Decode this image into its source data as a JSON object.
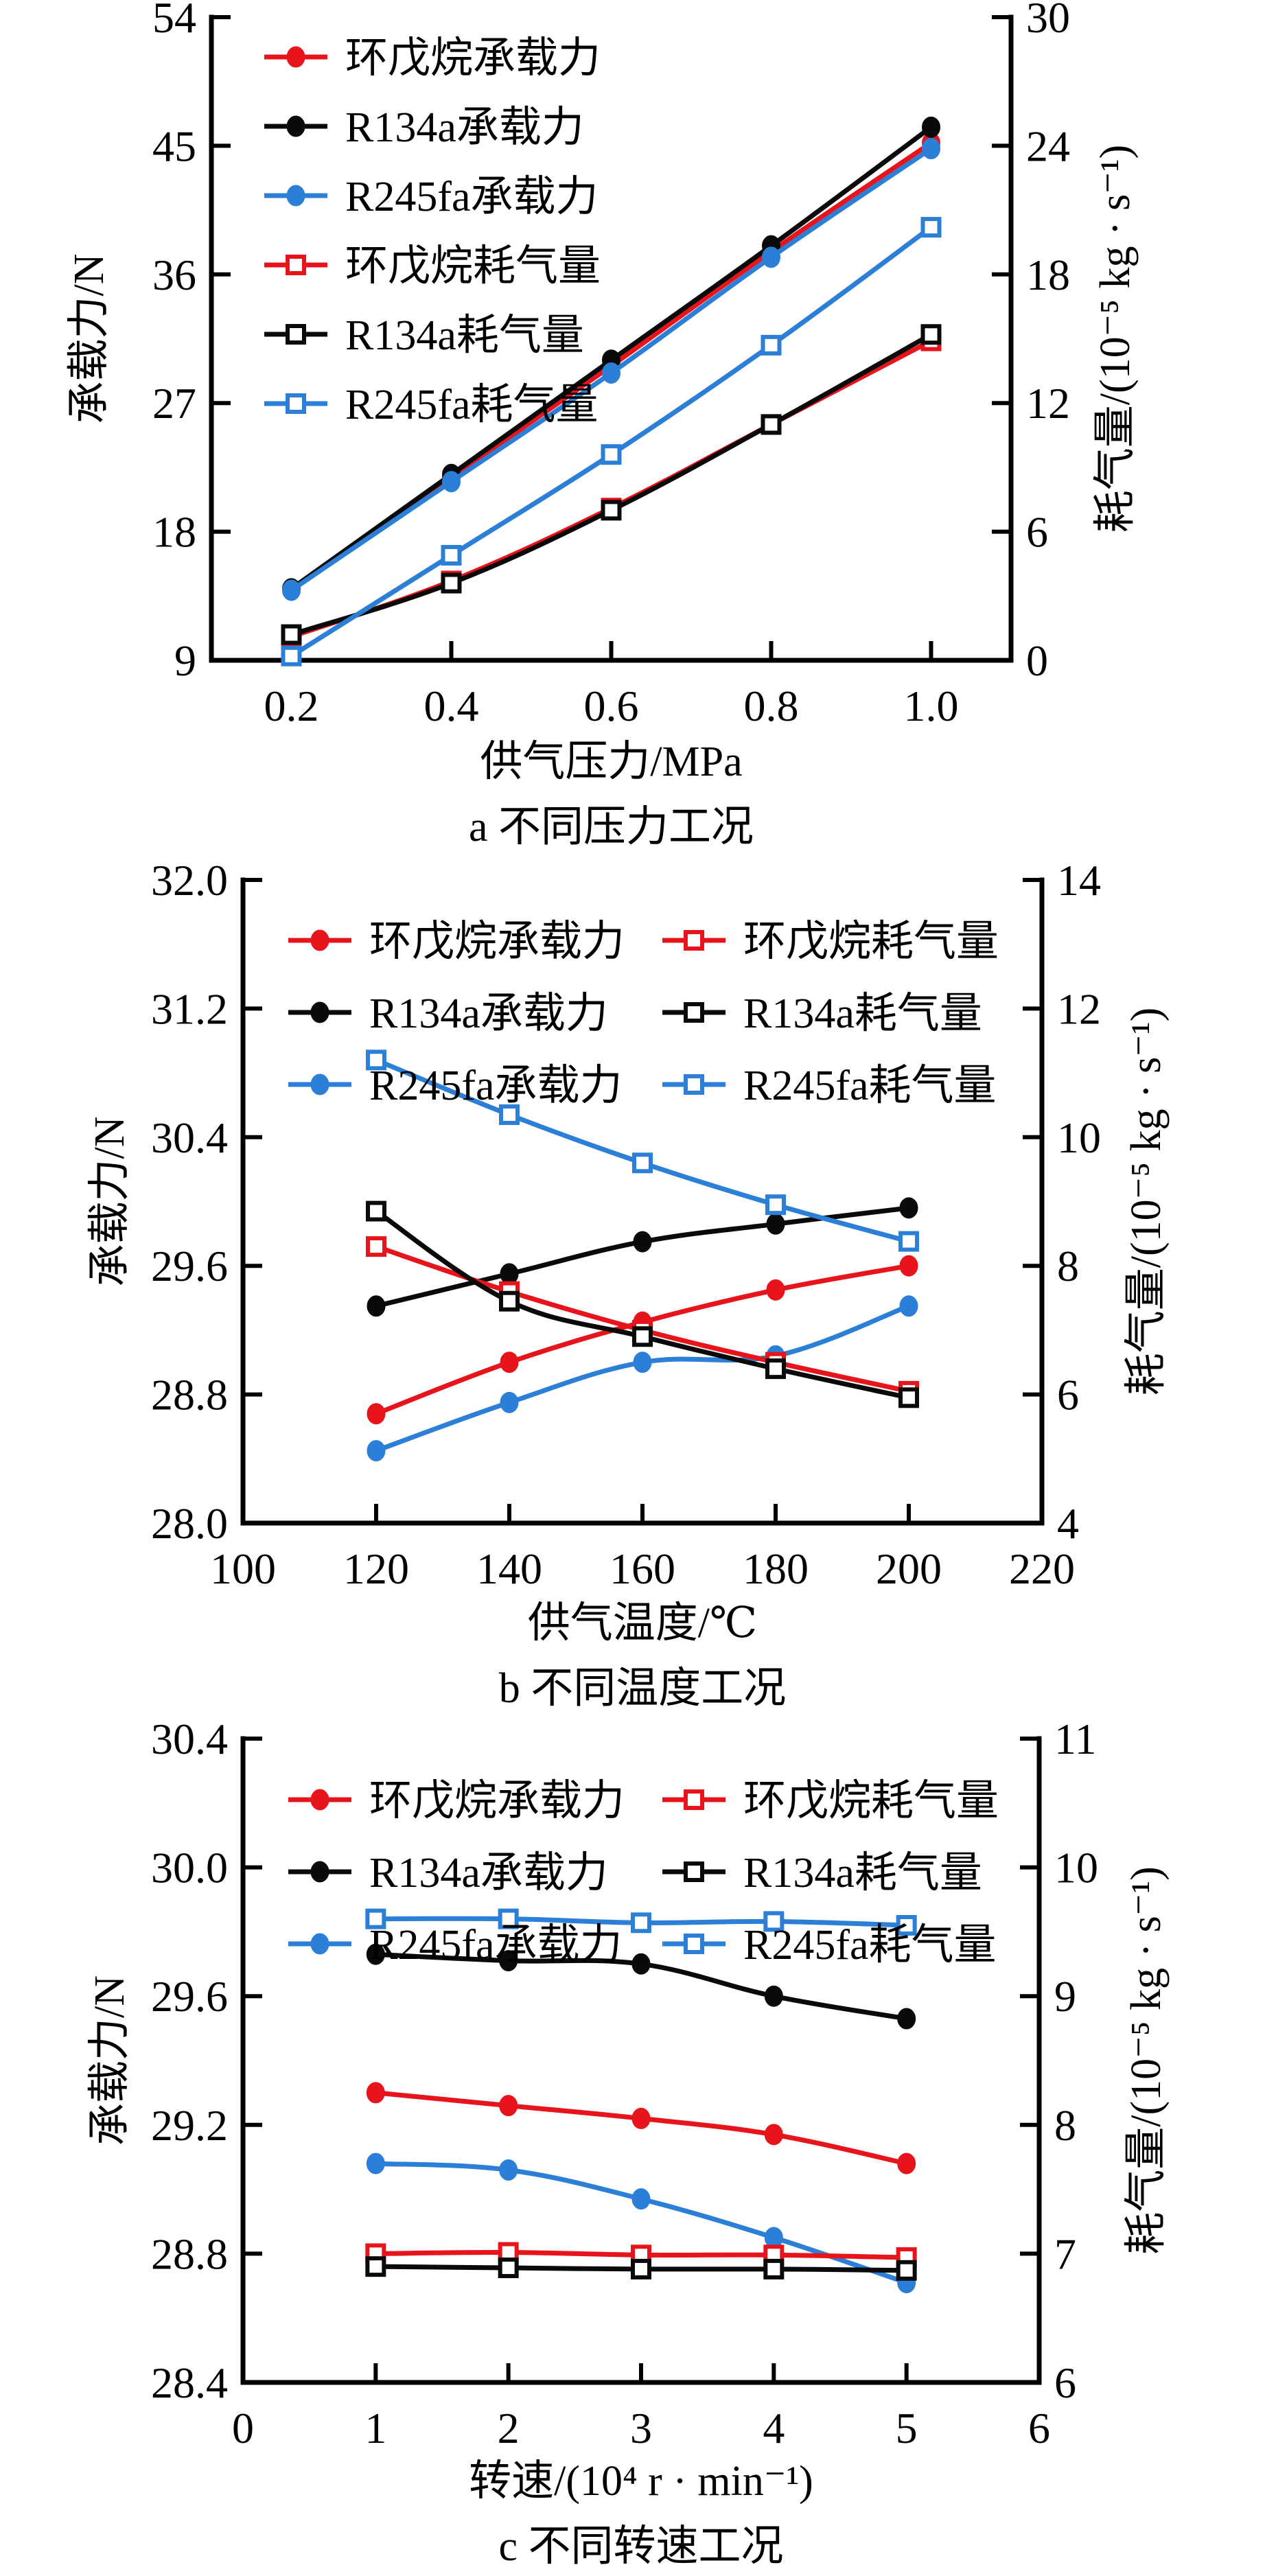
{
  "colors": {
    "cyclopentane": "#e8141b",
    "r134a": "#0a0a0a",
    "r245fa": "#2b7fd6"
  },
  "chart_data": [
    {
      "id": "a",
      "type": "line",
      "caption": "a  不同压力工况",
      "xlabel": "供气压力/MPa",
      "ylabel": "承载力/N",
      "y2label": "耗气量/(10⁻⁵ kg · s⁻¹)",
      "xlim": [
        0.1,
        1.1
      ],
      "ylim": [
        9,
        54
      ],
      "y2lim": [
        0,
        30
      ],
      "xticks": [
        0.2,
        0.4,
        0.6,
        0.8,
        1.0
      ],
      "xtick_labels": [
        "0.2",
        "0.4",
        "0.6",
        "0.8",
        "1.0"
      ],
      "yticks": [
        9,
        18,
        27,
        36,
        45,
        54
      ],
      "ytick_labels": [
        "9",
        "18",
        "27",
        "36",
        "45",
        "54"
      ],
      "y2ticks": [
        0,
        6,
        12,
        18,
        24,
        30
      ],
      "y2tick_labels": [
        "0",
        "6",
        "12",
        "18",
        "24",
        "30"
      ],
      "grid": false,
      "legend_position": "top-left",
      "legend_columns": 1,
      "x": [
        0.2,
        0.4,
        0.6,
        0.8,
        1.0
      ],
      "series": [
        {
          "name": "环戊烷承载力",
          "fluid": "cyclopentane",
          "axis": "left",
          "marker": "filled-circle",
          "values": [
            14.0,
            21.8,
            29.6,
            37.6,
            45.2
          ]
        },
        {
          "name": "R134a承载力",
          "fluid": "r134a",
          "axis": "left",
          "marker": "filled-circle",
          "values": [
            14.0,
            22.0,
            30.0,
            38.0,
            46.3
          ]
        },
        {
          "name": "R245fa承载力",
          "fluid": "r245fa",
          "axis": "left",
          "marker": "filled-circle",
          "values": [
            13.9,
            21.5,
            29.1,
            37.2,
            44.8
          ]
        },
        {
          "name": "环戊烷耗气量",
          "fluid": "cyclopentane",
          "axis": "right",
          "marker": "open-square",
          "values": [
            1.1,
            3.7,
            7.1,
            11.0,
            14.9
          ]
        },
        {
          "name": "R134a耗气量",
          "fluid": "r134a",
          "axis": "right",
          "marker": "open-square",
          "values": [
            1.2,
            3.6,
            7.0,
            11.0,
            15.2
          ]
        },
        {
          "name": "R245fa耗气量",
          "fluid": "r245fa",
          "axis": "right",
          "marker": "open-square",
          "values": [
            0.2,
            4.9,
            9.6,
            14.7,
            20.2
          ]
        }
      ]
    },
    {
      "id": "b",
      "type": "line",
      "caption": "b  不同温度工况",
      "xlabel": "供气温度/℃",
      "ylabel": "承载力/N",
      "y2label": "耗气量/(10⁻⁵ kg · s⁻¹)",
      "xlim": [
        100,
        220
      ],
      "ylim": [
        28.0,
        32.0
      ],
      "y2lim": [
        4,
        14
      ],
      "xticks": [
        100,
        120,
        140,
        160,
        180,
        200,
        220
      ],
      "xtick_labels": [
        "100",
        "120",
        "140",
        "160",
        "180",
        "200",
        "220"
      ],
      "yticks": [
        28.0,
        28.8,
        29.6,
        30.4,
        31.2,
        32.0
      ],
      "ytick_labels": [
        "28.0",
        "28.8",
        "29.6",
        "30.4",
        "31.2",
        "32.0"
      ],
      "y2ticks": [
        4,
        6,
        8,
        10,
        12,
        14
      ],
      "y2tick_labels": [
        "4",
        "6",
        "8",
        "10",
        "12",
        "14"
      ],
      "grid": false,
      "legend_position": "top",
      "legend_columns": 2,
      "x": [
        120,
        140,
        160,
        180,
        200
      ],
      "series": [
        {
          "name": "环戊烷承载力",
          "fluid": "cyclopentane",
          "axis": "left",
          "marker": "filled-circle",
          "values": [
            28.68,
            29.0,
            29.25,
            29.45,
            29.6
          ]
        },
        {
          "name": "R134a承载力",
          "fluid": "r134a",
          "axis": "left",
          "marker": "filled-circle",
          "values": [
            29.35,
            29.55,
            29.75,
            29.86,
            29.96
          ]
        },
        {
          "name": "R245fa承载力",
          "fluid": "r245fa",
          "axis": "left",
          "marker": "filled-circle",
          "values": [
            28.45,
            28.75,
            29.0,
            29.04,
            29.35
          ]
        },
        {
          "name": "环戊烷耗气量",
          "fluid": "cyclopentane",
          "axis": "right",
          "marker": "open-square",
          "values": [
            8.3,
            7.6,
            7.0,
            6.5,
            6.05
          ]
        },
        {
          "name": "R134a耗气量",
          "fluid": "r134a",
          "axis": "right",
          "marker": "open-square",
          "values": [
            8.85,
            7.45,
            6.9,
            6.4,
            5.95
          ]
        },
        {
          "name": "R245fa耗气量",
          "fluid": "r245fa",
          "axis": "right",
          "marker": "open-square",
          "values": [
            11.2,
            10.35,
            9.6,
            8.95,
            8.38
          ]
        }
      ]
    },
    {
      "id": "c",
      "type": "line",
      "caption": "c  不同转速工况",
      "xlabel": "转速/(10⁴ r · min⁻¹)",
      "ylabel": "承载力/N",
      "y2label": "耗气量/(10⁻⁵ kg · s⁻¹)",
      "xlim": [
        0,
        6
      ],
      "ylim": [
        28.4,
        30.4
      ],
      "y2lim": [
        6,
        11
      ],
      "xticks": [
        0,
        1,
        2,
        3,
        4,
        5,
        6
      ],
      "xtick_labels": [
        "0",
        "1",
        "2",
        "3",
        "4",
        "5",
        "6"
      ],
      "yticks": [
        28.4,
        28.8,
        29.2,
        29.6,
        30.0,
        30.4
      ],
      "ytick_labels": [
        "28.4",
        "28.8",
        "29.2",
        "29.6",
        "30.0",
        "30.4"
      ],
      "y2ticks": [
        6,
        7,
        8,
        9,
        10,
        11
      ],
      "y2tick_labels": [
        "6",
        "7",
        "8",
        "9",
        "10",
        "11"
      ],
      "grid": false,
      "legend_position": "top",
      "legend_columns": 2,
      "x": [
        1,
        2,
        3,
        4,
        5
      ],
      "series": [
        {
          "name": "环戊烷承载力",
          "fluid": "cyclopentane",
          "axis": "left",
          "marker": "filled-circle",
          "values": [
            29.3,
            29.26,
            29.22,
            29.17,
            29.08
          ]
        },
        {
          "name": "R134a承载力",
          "fluid": "r134a",
          "axis": "left",
          "marker": "filled-circle",
          "values": [
            29.73,
            29.71,
            29.7,
            29.6,
            29.53
          ]
        },
        {
          "name": "R245fa承载力",
          "fluid": "r245fa",
          "axis": "left",
          "marker": "filled-circle",
          "values": [
            29.08,
            29.06,
            28.97,
            28.85,
            28.71
          ]
        },
        {
          "name": "环戊烷耗气量",
          "fluid": "cyclopentane",
          "axis": "right",
          "marker": "open-square",
          "values": [
            7.0,
            7.01,
            6.99,
            6.99,
            6.97
          ]
        },
        {
          "name": "R134a耗气量",
          "fluid": "r134a",
          "axis": "right",
          "marker": "open-square",
          "values": [
            6.9,
            6.89,
            6.88,
            6.88,
            6.87
          ]
        },
        {
          "name": "R245fa耗气量",
          "fluid": "r245fa",
          "axis": "right",
          "marker": "open-square",
          "values": [
            9.6,
            9.6,
            9.57,
            9.58,
            9.55
          ]
        }
      ]
    }
  ]
}
